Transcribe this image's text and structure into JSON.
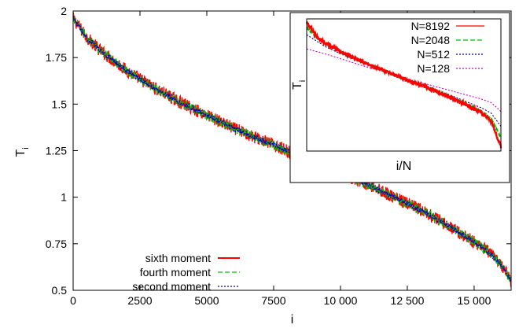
{
  "chart_data": [
    {
      "type": "line",
      "xlabel": "i",
      "ylabel": "T",
      "ylabel_subscript": "i",
      "xlim": [
        0,
        16384
      ],
      "ylim": [
        0.5,
        2.0
      ],
      "x_ticks": [
        0,
        2500,
        5000,
        7500,
        10000,
        12500,
        15000
      ],
      "x_tick_labels": [
        "0",
        "2500",
        "5000",
        "7500",
        "10 000",
        "12 500",
        "15 000"
      ],
      "y_ticks": [
        0.5,
        0.75,
        1.0,
        1.25,
        1.5,
        1.75,
        2.0
      ],
      "y_tick_labels": [
        "0.5",
        "0.75",
        "1",
        "1.25",
        "1.5",
        "1.75",
        "2"
      ],
      "legend_position": "bottom-left",
      "series": [
        {
          "name": "sixth moment",
          "color": "#ff0000",
          "style": "solid",
          "noise": 0.035,
          "x": [
            0,
            500,
            1000,
            2000,
            3000,
            4000,
            5000,
            6000,
            7000,
            8000,
            9000,
            10000,
            11000,
            12000,
            13000,
            14000,
            15000,
            15500,
            16000,
            16384
          ],
          "y": [
            1.96,
            1.86,
            1.79,
            1.68,
            1.59,
            1.51,
            1.44,
            1.37,
            1.31,
            1.25,
            1.19,
            1.13,
            1.07,
            1.0,
            0.93,
            0.85,
            0.76,
            0.71,
            0.64,
            0.55
          ]
        },
        {
          "name": "fourth moment",
          "color": "#00bb00",
          "style": "dashed",
          "noise": 0.025,
          "x": [
            0,
            500,
            1000,
            2000,
            3000,
            4000,
            5000,
            6000,
            7000,
            8000,
            9000,
            10000,
            11000,
            12000,
            13000,
            14000,
            15000,
            15500,
            16000,
            16384
          ],
          "y": [
            1.96,
            1.86,
            1.79,
            1.68,
            1.59,
            1.51,
            1.44,
            1.37,
            1.31,
            1.25,
            1.19,
            1.13,
            1.07,
            1.0,
            0.93,
            0.85,
            0.76,
            0.71,
            0.64,
            0.55
          ]
        },
        {
          "name": "second moment",
          "color": "#0000cc",
          "style": "dotted",
          "noise": 0.015,
          "x": [
            0,
            500,
            1000,
            2000,
            3000,
            4000,
            5000,
            6000,
            7000,
            8000,
            9000,
            10000,
            11000,
            12000,
            13000,
            14000,
            15000,
            15500,
            16000,
            16384
          ],
          "y": [
            1.96,
            1.86,
            1.79,
            1.68,
            1.59,
            1.51,
            1.44,
            1.37,
            1.31,
            1.25,
            1.19,
            1.13,
            1.07,
            1.0,
            0.93,
            0.85,
            0.76,
            0.71,
            0.64,
            0.55
          ]
        }
      ]
    },
    {
      "type": "line",
      "xlabel": "i/N",
      "ylabel": "T",
      "ylabel_subscript": "i",
      "xlim": [
        0,
        1
      ],
      "ylim": [
        0.5,
        2.0
      ],
      "ticks": "none",
      "legend_position": "top-right",
      "series": [
        {
          "name": "N=8192",
          "color": "#ff0000",
          "style": "solid",
          "noise": 0.02,
          "x": [
            0,
            0.05,
            0.1,
            0.2,
            0.3,
            0.4,
            0.5,
            0.6,
            0.7,
            0.8,
            0.9,
            0.95,
            1.0
          ],
          "y": [
            1.96,
            1.8,
            1.72,
            1.6,
            1.5,
            1.41,
            1.32,
            1.24,
            1.15,
            1.05,
            0.93,
            0.84,
            0.55
          ]
        },
        {
          "name": "N=2048",
          "color": "#00bb00",
          "style": "dashed",
          "noise": 0.008,
          "x": [
            0,
            0.05,
            0.1,
            0.2,
            0.3,
            0.4,
            0.5,
            0.6,
            0.7,
            0.8,
            0.9,
            0.95,
            1.0
          ],
          "y": [
            1.9,
            1.79,
            1.71,
            1.6,
            1.5,
            1.41,
            1.32,
            1.24,
            1.15,
            1.06,
            0.95,
            0.87,
            0.65
          ]
        },
        {
          "name": "N=512",
          "color": "#00008b",
          "style": "dotted",
          "noise": 0.0,
          "x": [
            0,
            0.05,
            0.1,
            0.2,
            0.3,
            0.4,
            0.5,
            0.6,
            0.7,
            0.8,
            0.9,
            0.95,
            1.0
          ],
          "y": [
            1.82,
            1.75,
            1.68,
            1.58,
            1.49,
            1.41,
            1.33,
            1.25,
            1.17,
            1.08,
            0.99,
            0.93,
            0.78
          ]
        },
        {
          "name": "N=128",
          "color": "#cc00cc",
          "style": "dotted",
          "noise": 0.0,
          "x": [
            0,
            0.05,
            0.1,
            0.2,
            0.3,
            0.4,
            0.5,
            0.6,
            0.7,
            0.8,
            0.9,
            0.95,
            1.0
          ],
          "y": [
            1.66,
            1.63,
            1.6,
            1.53,
            1.46,
            1.4,
            1.33,
            1.27,
            1.21,
            1.15,
            1.09,
            1.05,
            0.95
          ]
        }
      ]
    }
  ]
}
